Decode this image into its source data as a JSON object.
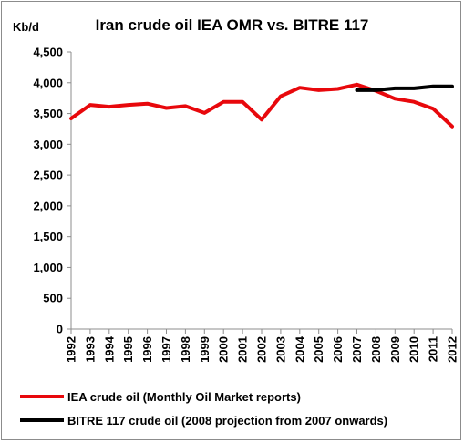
{
  "chart_data": {
    "type": "line",
    "title": "Iran crude oil IEA OMR vs. BITRE 117",
    "ylabel": "Kb/d",
    "xlabel": "",
    "ylim": [
      0,
      4500
    ],
    "yticks": [
      0,
      500,
      1000,
      1500,
      2000,
      2500,
      3000,
      3500,
      4000,
      4500
    ],
    "ytick_labels": [
      "0",
      "500",
      "1,000",
      "1,500",
      "2,000",
      "2,500",
      "3,000",
      "3,500",
      "4,000",
      "4,500"
    ],
    "categories": [
      "1992",
      "1993",
      "1994",
      "1995",
      "1996",
      "1997",
      "1998",
      "1999",
      "2000",
      "2001",
      "2002",
      "2003",
      "2004",
      "2005",
      "2006",
      "2007",
      "2008",
      "2009",
      "2010",
      "2011",
      "2012"
    ],
    "grid": false,
    "legend_position": "bottom",
    "series": [
      {
        "name": "IEA crude oil (Monthly Oil Market reports)",
        "color": "#e8080c",
        "values": [
          3420,
          3640,
          3610,
          3640,
          3660,
          3590,
          3620,
          3510,
          3690,
          3690,
          3400,
          3780,
          3920,
          3880,
          3900,
          3970,
          3870,
          3740,
          3690,
          3580,
          3290
        ]
      },
      {
        "name": "BITRE 117 crude oil (2008 projection from 2007 onwards)",
        "color": "#000000",
        "values": [
          null,
          null,
          null,
          null,
          null,
          null,
          null,
          null,
          null,
          null,
          null,
          null,
          null,
          null,
          null,
          3880,
          3880,
          3910,
          3910,
          3940,
          3940
        ]
      }
    ]
  }
}
